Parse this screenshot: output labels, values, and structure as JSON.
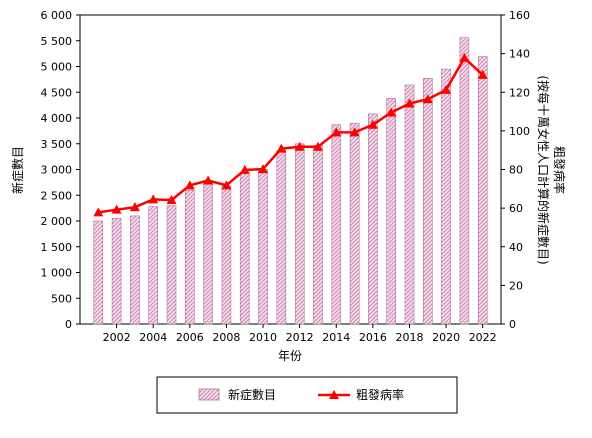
{
  "chart_data": {
    "type": "bar+line",
    "x": [
      2001,
      2002,
      2003,
      2004,
      2005,
      2006,
      2007,
      2008,
      2009,
      2010,
      2011,
      2012,
      2013,
      2014,
      2015,
      2016,
      2017,
      2018,
      2019,
      2020,
      2021,
      2022
    ],
    "x_tick_labels": [
      "2002",
      "2004",
      "2006",
      "2008",
      "2010",
      "2012",
      "2014",
      "2016",
      "2018",
      "2020",
      "2022"
    ],
    "series": [
      {
        "name": "新症數目",
        "type": "bar",
        "axis": "left",
        "values": [
          2000,
          2050,
          2100,
          2280,
          2300,
          2600,
          2750,
          2680,
          2950,
          3000,
          3370,
          3500,
          3470,
          3870,
          3900,
          4080,
          4380,
          4640,
          4770,
          4950,
          5560,
          5190
        ]
      },
      {
        "name": "粗發病率",
        "type": "line",
        "axis": "right",
        "color": "#ff0000",
        "marker": "triangle",
        "values": [
          57.8,
          59.2,
          60.5,
          64.5,
          64.2,
          71.8,
          74.3,
          71.8,
          79.8,
          80.2,
          90.8,
          91.8,
          91.8,
          99.2,
          99.2,
          103.2,
          109.5,
          114.2,
          116.4,
          121.2,
          137.8,
          129.0
        ]
      }
    ],
    "xlabel": "年份",
    "ylabel_left": "新症數目",
    "ylabel_right": "粗發病率\n(按每十萬女性人口計算的新症數目)",
    "ylim_left": [
      0,
      6000
    ],
    "ylim_right": [
      0,
      160
    ],
    "yticks_left": [
      "0",
      "500",
      "1 000",
      "1 500",
      "2 000",
      "2 500",
      "3 000",
      "3 500",
      "4 000",
      "4 500",
      "5 000",
      "5 500",
      "6 000"
    ],
    "yticks_right": [
      "0",
      "20",
      "40",
      "60",
      "80",
      "100",
      "120",
      "140",
      "160"
    ],
    "grid": false,
    "legend_position": "bottom",
    "colors": {
      "bar_fill": "#f3d9ea",
      "bar_hatch": "#c47aa8",
      "line": "#ff0000"
    }
  }
}
